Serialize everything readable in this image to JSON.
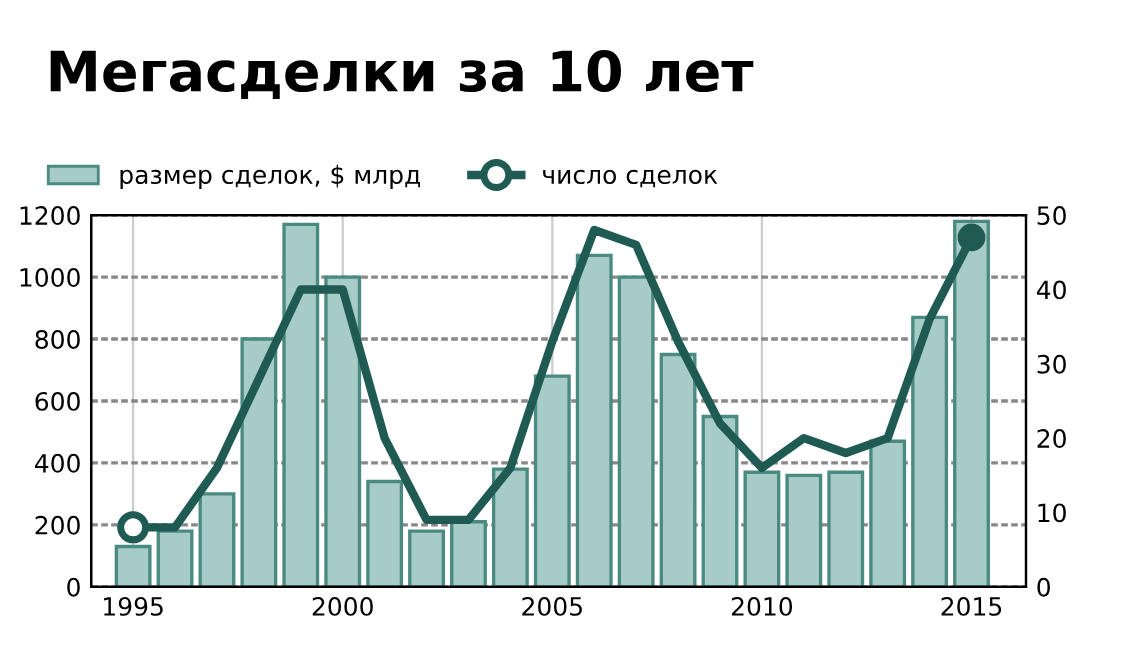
{
  "chart_data": {
    "type": "bar",
    "title": "Мегасделки за 10 лет",
    "x": [
      1995,
      1996,
      1997,
      1998,
      1999,
      2000,
      2001,
      2002,
      2003,
      2004,
      2005,
      2006,
      2007,
      2008,
      2009,
      2010,
      2011,
      2012,
      2013,
      2014,
      2015
    ],
    "series": [
      {
        "name": "размер сделок, $ млрд",
        "color": "#a7cbc7",
        "values": [
          130,
          180,
          300,
          800,
          1170,
          1000,
          340,
          180,
          210,
          380,
          680,
          1070,
          1000,
          750,
          550,
          370,
          360,
          370,
          470,
          870,
          1180
        ]
      },
      {
        "name": "число сделок",
        "type": "line",
        "axis": "y2",
        "color": "#1f5b53",
        "values": [
          8,
          8,
          16,
          28,
          40,
          40,
          20,
          9,
          9,
          16,
          33,
          48,
          46,
          33,
          22,
          16,
          20,
          18,
          20,
          36,
          47
        ]
      }
    ],
    "xlim": [
      1994,
      2016.3
    ],
    "xticks": [
      1995,
      2000,
      2005,
      2010,
      2015
    ],
    "ylim": [
      0,
      1200
    ],
    "yticks": [
      0,
      200,
      400,
      600,
      800,
      1000,
      1200
    ],
    "y2lim": [
      0,
      50
    ],
    "y2ticks": [
      0,
      10,
      20,
      30,
      40,
      50
    ],
    "grid": true,
    "legend": "top left",
    "line_style": "solid"
  }
}
